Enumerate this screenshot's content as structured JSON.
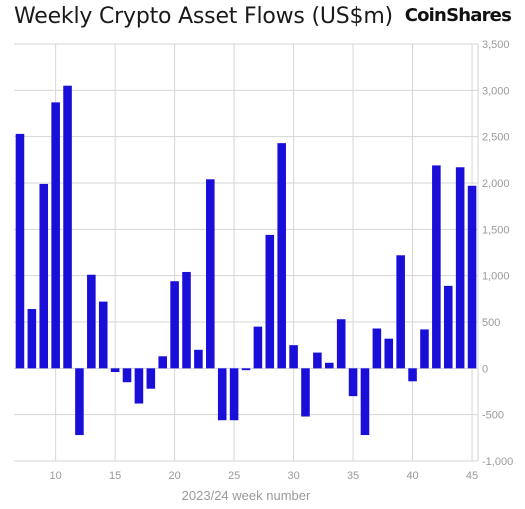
{
  "header": {
    "title": "Weekly Crypto Asset Flows (US$m)",
    "brand": "CoinShares"
  },
  "chart_data": {
    "type": "bar",
    "title": "Weekly Crypto Asset Flows (US$m)",
    "xlabel": "2023/24 week number",
    "ylabel": "",
    "x": [
      7,
      8,
      9,
      10,
      11,
      12,
      13,
      14,
      15,
      16,
      17,
      18,
      19,
      20,
      21,
      22,
      23,
      24,
      25,
      26,
      27,
      28,
      29,
      30,
      31,
      32,
      33,
      34,
      35,
      36,
      37,
      38,
      39,
      40,
      41,
      42,
      43,
      44,
      45
    ],
    "values": [
      2530,
      640,
      1990,
      2870,
      3050,
      -720,
      1010,
      720,
      -40,
      -150,
      -380,
      -220,
      130,
      940,
      1040,
      200,
      2040,
      -560,
      -560,
      -20,
      450,
      1440,
      2430,
      250,
      -520,
      170,
      60,
      530,
      -300,
      -720,
      430,
      320,
      1220,
      -140,
      420,
      2190,
      890,
      2170,
      1970
    ],
    "xticks": [
      10,
      15,
      20,
      25,
      30,
      35,
      40,
      45
    ],
    "xtick_labels": [
      "10",
      "15",
      "20",
      "25",
      "30",
      "35",
      "40",
      "45"
    ],
    "yticks": [
      -1000,
      -500,
      0,
      500,
      1000,
      1500,
      2000,
      2500,
      3000,
      3500
    ],
    "ytick_labels": [
      "-1,000",
      "-500",
      "0",
      "500",
      "1,000",
      "1,500",
      "2,000",
      "2,500",
      "3,000",
      "3,500"
    ],
    "xlim": [
      6.5,
      45.5
    ],
    "ylim": [
      -1000,
      3500
    ],
    "grid": true,
    "legend": "none",
    "colors": {
      "bar": "#1a0fd8",
      "grid": "#d6d6d6",
      "axis": "#9a9a9a"
    }
  }
}
